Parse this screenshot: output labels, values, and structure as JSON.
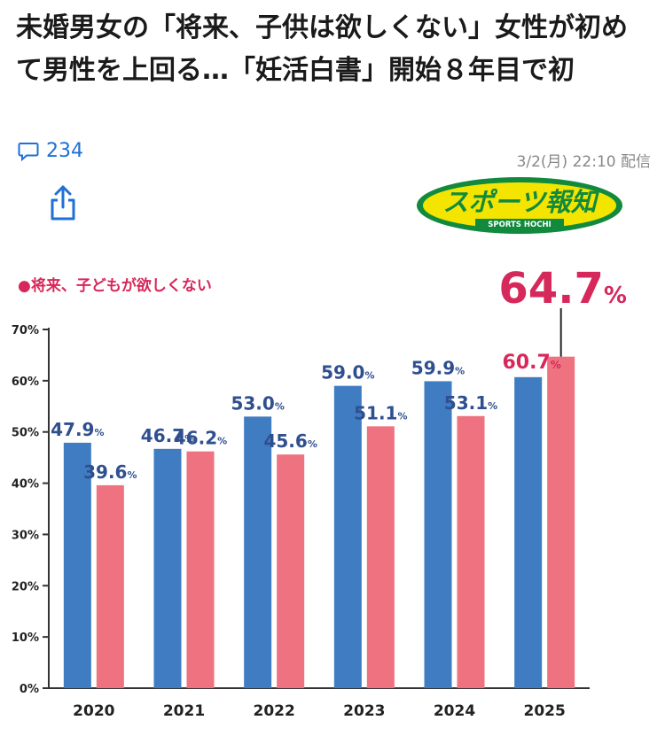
{
  "article": {
    "headline": "未婚男女の「将来、子供は欲しくない」女性が初めて男性を上回る…「妊活白書」開始８年目で初",
    "comment_count": "234",
    "timestamp": "3/2(月) 22:10 配信",
    "source_logo_text": "スポーツ報知",
    "source_logo_subtext": "SPORTS HOCHI"
  },
  "colors": {
    "male": "#3f7cc2",
    "female": "#ee727f",
    "highlight": "#d6285a",
    "link": "#1f6fd6"
  },
  "icons": {
    "comment": "comment-icon",
    "share": "share-icon"
  },
  "chart_data": {
    "type": "bar",
    "title": "●将来、子どもが欲しくない",
    "categories": [
      "2020",
      "2021",
      "2022",
      "2023",
      "2024",
      "2025"
    ],
    "series": [
      {
        "values": [
          47.9,
          46.7,
          53.0,
          59.0,
          59.9,
          60.7
        ],
        "color": "#3f7cc2"
      },
      {
        "values": [
          39.6,
          46.2,
          45.6,
          51.1,
          53.1,
          64.7
        ],
        "color": "#ee727f"
      }
    ],
    "value_labels": [
      [
        "47.9%",
        "46.7%",
        "53.0%",
        "59.0%",
        "59.9%",
        "60.7%"
      ],
      [
        "39.6%",
        "46.2%",
        "45.6%",
        "51.1%",
        "53.1%",
        "64.7%"
      ]
    ],
    "y_ticks": [
      "0%",
      "10%",
      "20%",
      "30%",
      "40%",
      "50%",
      "60%",
      "70%"
    ],
    "ylim": [
      0,
      70
    ],
    "grid": false,
    "xlabel": "",
    "ylabel": ""
  }
}
